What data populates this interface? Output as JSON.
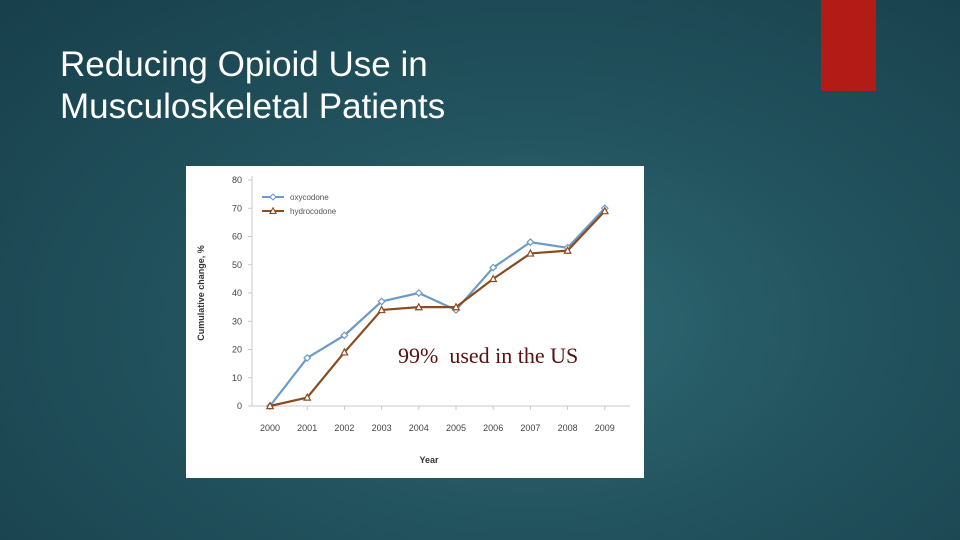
{
  "slide": {
    "title_line1": "Reducing Opioid Use in",
    "title_line2": "Musculoskeletal Patients",
    "accent_color": "#b31b17",
    "annotation": "99%  used in the US"
  },
  "chart_data": {
    "type": "line",
    "title": "",
    "xlabel": "Year",
    "ylabel": "Cumulative change, %",
    "ylim": [
      0,
      80
    ],
    "yticks": [
      0,
      10,
      20,
      30,
      40,
      50,
      60,
      70,
      80
    ],
    "grid": false,
    "legend_position": "top-left",
    "x": [
      "2000",
      "2001",
      "2002",
      "2003",
      "2004",
      "2005",
      "2006",
      "2007",
      "2008",
      "2009"
    ],
    "series": [
      {
        "name": "oxycodone",
        "color": "#6b9bc8",
        "marker": "diamond",
        "values": [
          0,
          17,
          25,
          37,
          40,
          34,
          49,
          58,
          56,
          70
        ]
      },
      {
        "name": "hydrocodone",
        "color": "#8a4b1f",
        "marker": "triangle",
        "values": [
          0,
          3,
          19,
          34,
          35,
          35,
          45,
          54,
          55,
          69
        ]
      }
    ]
  }
}
